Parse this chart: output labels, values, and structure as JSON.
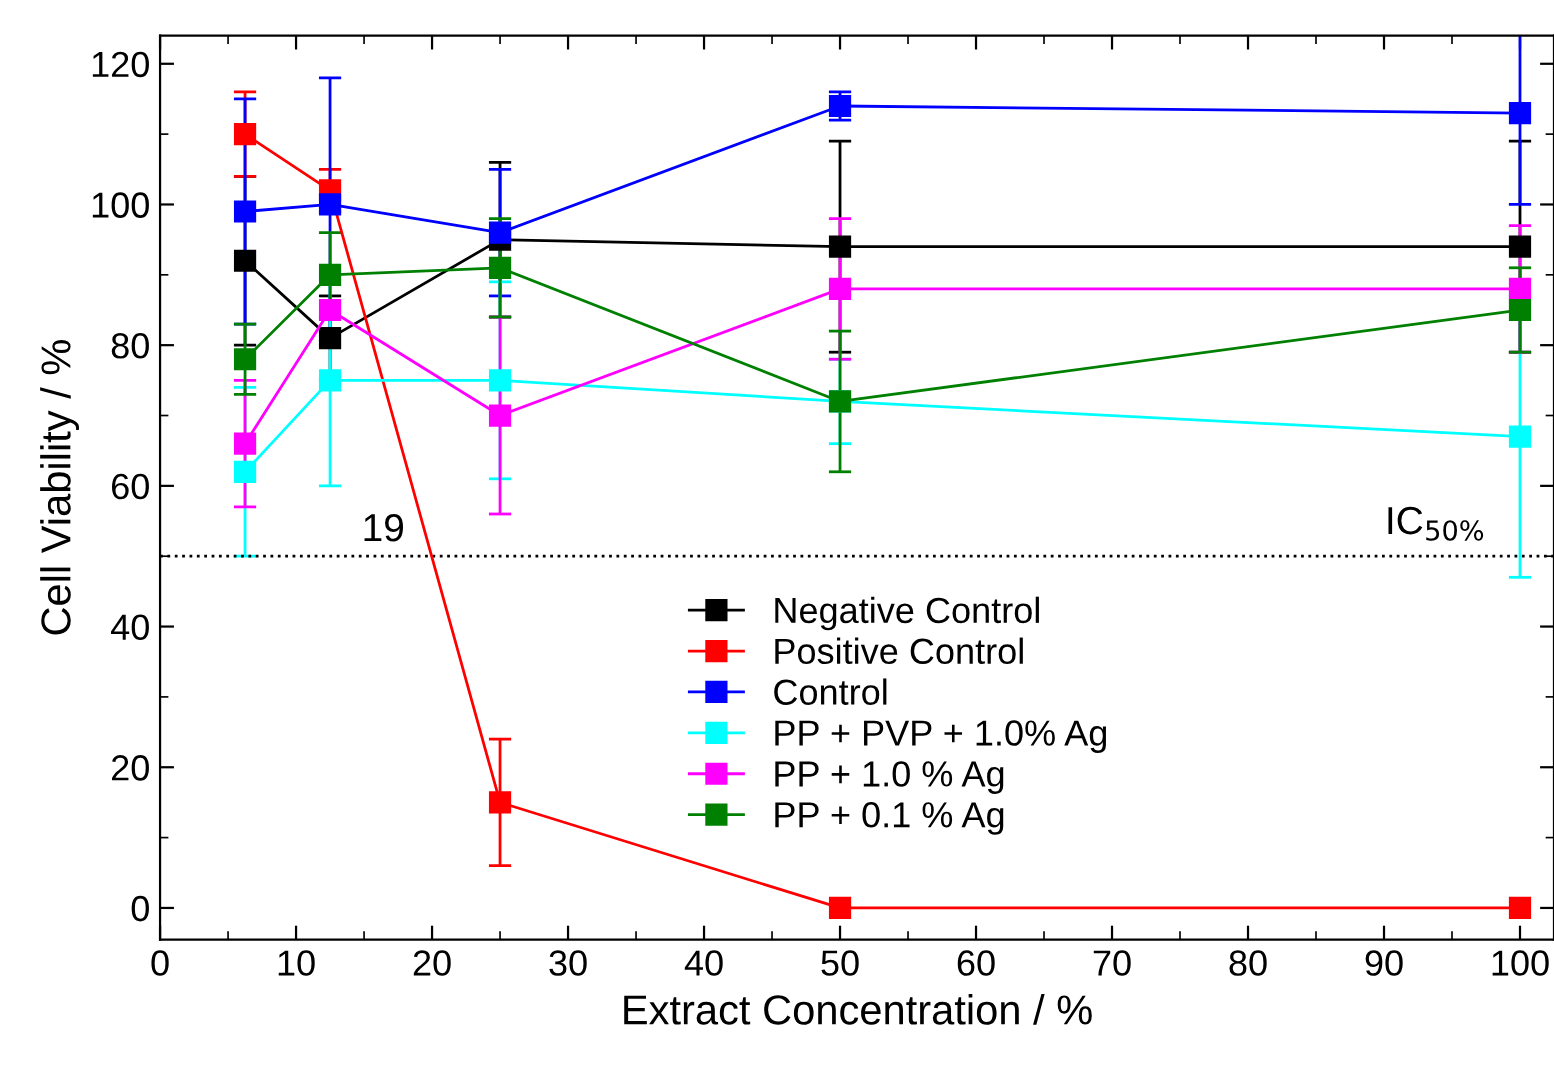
{
  "chart_data": {
    "type": "line",
    "xlabel": "Extract Concentration / %",
    "ylabel": "Cell Viability / %",
    "x": [
      6.25,
      12.5,
      25,
      50,
      100
    ],
    "series": [
      {
        "name": "Negative Control",
        "color": "#000000",
        "values": [
          92,
          81,
          95,
          94,
          94
        ],
        "errors": [
          12,
          6,
          11,
          15,
          15
        ]
      },
      {
        "name": "Positive Control",
        "color": "#ff0000",
        "values": [
          110,
          102,
          15,
          0,
          0
        ],
        "errors": [
          6,
          3,
          9,
          null,
          null
        ]
      },
      {
        "name": "Control",
        "color": "#0000ff",
        "values": [
          99,
          100,
          96,
          114,
          113
        ],
        "errors": [
          16,
          18,
          9,
          2,
          13
        ]
      },
      {
        "name": "PP + PVP + 1.0% Ag",
        "color": "#00ffff",
        "values": [
          62,
          75,
          75,
          72,
          67
        ],
        "errors": [
          12,
          15,
          14,
          6,
          20
        ]
      },
      {
        "name": "PP + 1.0 % Ag",
        "color": "#ff00ff",
        "values": [
          66,
          85,
          70,
          88,
          88
        ],
        "errors": [
          9,
          null,
          14,
          10,
          9
        ]
      },
      {
        "name": "PP + 0.1 % Ag",
        "color": "#008000",
        "values": [
          78,
          90,
          91,
          72,
          85
        ],
        "errors": [
          5,
          6,
          7,
          10,
          6
        ]
      }
    ],
    "xlim": [
      0,
      102.5
    ],
    "ylim": [
      -4.5,
      124
    ],
    "xticks": [
      0,
      10,
      20,
      30,
      40,
      50,
      60,
      70,
      80,
      90,
      100
    ],
    "yticks": [
      0,
      20,
      40,
      60,
      80,
      100,
      120
    ],
    "ref_lines": [
      {
        "axis": "y",
        "value": 50,
        "label": "IC$_{50%}$",
        "color": "#000000",
        "line_style": "dotted"
      }
    ],
    "annotations": [
      {
        "text": "19",
        "x": 18,
        "y": 50
      }
    ],
    "marker": "square",
    "line_style": "solid",
    "grid": false,
    "legend": "bottom"
  }
}
